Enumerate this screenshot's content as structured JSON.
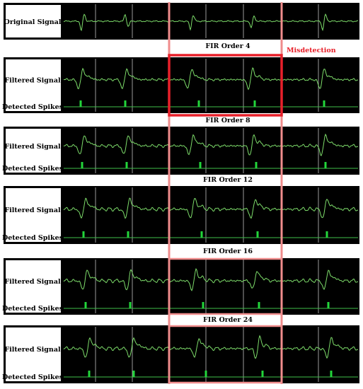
{
  "panels": [
    {
      "title": "",
      "rows": [
        "Original Signal"
      ]
    },
    {
      "title": "FIR Order 4",
      "rows": [
        "Filtered Signal",
        "Detected Spikes"
      ]
    },
    {
      "title": "FIR Order 8",
      "rows": [
        "Filtered Signal",
        "Detected Spikes"
      ]
    },
    {
      "title": "FIR Order 12",
      "rows": [
        "Filtered Signal",
        "Detected Spikes"
      ]
    },
    {
      "title": "FIR Order 16",
      "rows": [
        "Filtered Signal",
        "Detected Spikes"
      ]
    },
    {
      "title": "FIR Order 24",
      "rows": [
        "Filtered Signal",
        "Detected Spikes"
      ]
    }
  ],
  "annotation": {
    "text": "Misdetection",
    "color": "#e8202a"
  },
  "colors": {
    "trace": "#7ddc6a",
    "spike": "#22d63a",
    "baseline": "#3fbf4a",
    "grid": "#9a9a9a",
    "scope_bg": "#000000",
    "highlight": "#f08c8c",
    "box": "#e8202a"
  }
}
